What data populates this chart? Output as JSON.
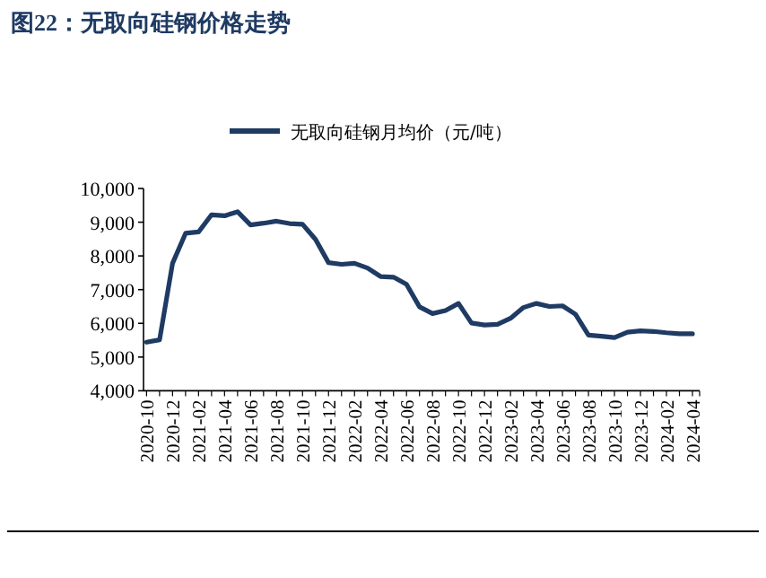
{
  "chart_data": {
    "type": "line",
    "title": "图22：无取向硅钢价格走势",
    "categories": [
      "2020-10",
      null,
      "2020-12",
      null,
      "2021-02",
      null,
      "2021-04",
      null,
      "2021-06",
      null,
      "2021-08",
      null,
      "2021-10",
      null,
      "2021-12",
      null,
      "2022-02",
      null,
      "2022-04",
      null,
      "2022-06",
      null,
      "2022-08",
      null,
      "2022-10",
      null,
      "2022-12",
      null,
      "2023-02",
      null,
      "2023-04",
      null,
      "2023-06",
      null,
      "2023-08",
      null,
      "2023-10",
      null,
      "2023-12",
      null,
      "2024-02",
      null,
      "2024-04"
    ],
    "series": [
      {
        "name": "无取向硅钢月均价（元/吨）",
        "color": "#1f3b63",
        "values": [
          5440,
          5510,
          7780,
          8670,
          8710,
          9220,
          9190,
          9310,
          8920,
          8970,
          9030,
          8960,
          8940,
          8490,
          7800,
          7750,
          7780,
          7640,
          7390,
          7370,
          7160,
          6490,
          6290,
          6380,
          6590,
          6010,
          5950,
          5970,
          6150,
          6470,
          6590,
          6500,
          6520,
          6270,
          5650,
          5620,
          5580,
          5740,
          5780,
          5760,
          5720,
          5690,
          5690
        ]
      }
    ],
    "ylim": [
      4000,
      10000
    ],
    "yticks": [
      {
        "value": 4000,
        "label": "4,000"
      },
      {
        "value": 5000,
        "label": "5,000"
      },
      {
        "value": 6000,
        "label": "6,000"
      },
      {
        "value": 7000,
        "label": "7,000"
      },
      {
        "value": 8000,
        "label": "8,000"
      },
      {
        "value": 9000,
        "label": "9,000"
      },
      {
        "value": 10000,
        "label": "10,000"
      }
    ],
    "legend": "top",
    "grid": false
  }
}
